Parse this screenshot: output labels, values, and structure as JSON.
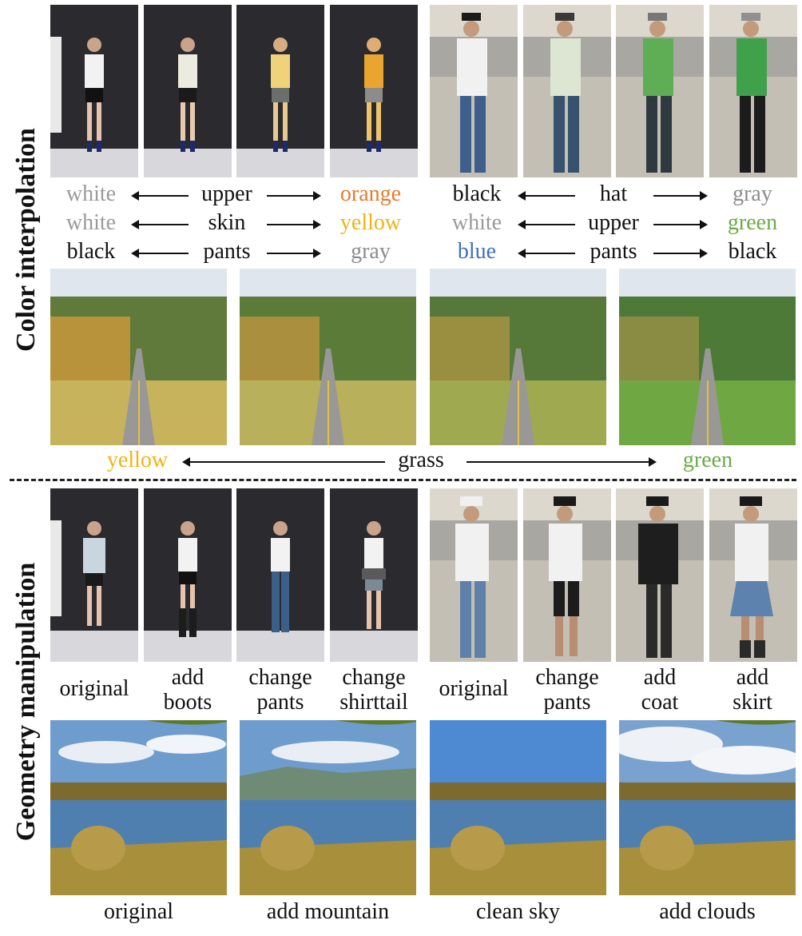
{
  "side_labels": {
    "color": "Color  interpolation",
    "geometry": "Geometry  manipulation"
  },
  "colors": {
    "white": "#9a9a9a",
    "black": "#111111",
    "gray": "#8c8c8c",
    "orange": "#e8792b",
    "yellow": "#f0b412",
    "green": "#6aab46",
    "blue": "#3f6fbf"
  },
  "interp_rows": {
    "girl": [
      {
        "left": "white",
        "mid": "upper",
        "right": "orange"
      },
      {
        "left": "white",
        "mid": "skin",
        "right": "yellow"
      },
      {
        "left": "black",
        "mid": "pants",
        "right": "gray"
      }
    ],
    "man": [
      {
        "left": "black",
        "mid": "hat",
        "right": "gray"
      },
      {
        "left": "white",
        "mid": "upper",
        "right": "green"
      },
      {
        "left": "blue",
        "mid": "pants",
        "right": "black"
      }
    ],
    "road": {
      "left": "yellow",
      "mid": "grass",
      "right": "green"
    }
  },
  "geo_captions": {
    "girl": [
      [
        "original"
      ],
      [
        "add",
        "boots"
      ],
      [
        "change",
        "pants"
      ],
      [
        "change",
        "shirttail"
      ]
    ],
    "man": [
      [
        "original"
      ],
      [
        "change",
        "pants"
      ],
      [
        "add",
        "coat"
      ],
      [
        "add",
        "skirt"
      ]
    ],
    "lake": [
      "original",
      "add mountain",
      "clean sky",
      "add clouds"
    ]
  }
}
